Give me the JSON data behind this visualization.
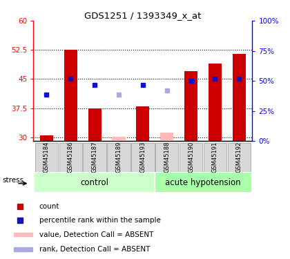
{
  "title": "GDS1251 / 1393349_x_at",
  "samples": [
    "GSM45184",
    "GSM45186",
    "GSM45187",
    "GSM45189",
    "GSM45193",
    "GSM45188",
    "GSM45190",
    "GSM45191",
    "GSM45192"
  ],
  "bar_values": [
    30.5,
    52.5,
    37.5,
    30.2,
    38.0,
    31.2,
    47.0,
    49.0,
    51.5
  ],
  "bar_is_absent": [
    false,
    false,
    false,
    true,
    false,
    true,
    false,
    false,
    false
  ],
  "blue_values": [
    41.0,
    45.0,
    43.5,
    null,
    43.5,
    null,
    44.5,
    45.0,
    45.0
  ],
  "blue_is_absent": [
    false,
    false,
    false,
    false,
    false,
    false,
    false,
    false,
    false
  ],
  "absent_rank_values": [
    null,
    null,
    null,
    41.0,
    null,
    42.0,
    null,
    null,
    null
  ],
  "ylim_left": [
    29,
    60
  ],
  "ylim_right": [
    0,
    100
  ],
  "yticks_left": [
    30,
    37.5,
    45,
    52.5,
    60
  ],
  "ytick_labels_left": [
    "30",
    "37.5",
    "45",
    "52.5",
    "60"
  ],
  "yticks_right": [
    0,
    25,
    50,
    75,
    100
  ],
  "ytick_labels_right": [
    "0%",
    "25%",
    "50%",
    "75%",
    "100%"
  ],
  "bar_color": "#cc0000",
  "bar_absent_color": "#ffbbbb",
  "blue_color": "#1111cc",
  "blue_absent_color": "#aaaadd",
  "control_color": "#ccffcc",
  "acute_color": "#aaffaa",
  "bar_width": 0.55,
  "n_control": 5,
  "n_acute": 4,
  "base_value": 29
}
